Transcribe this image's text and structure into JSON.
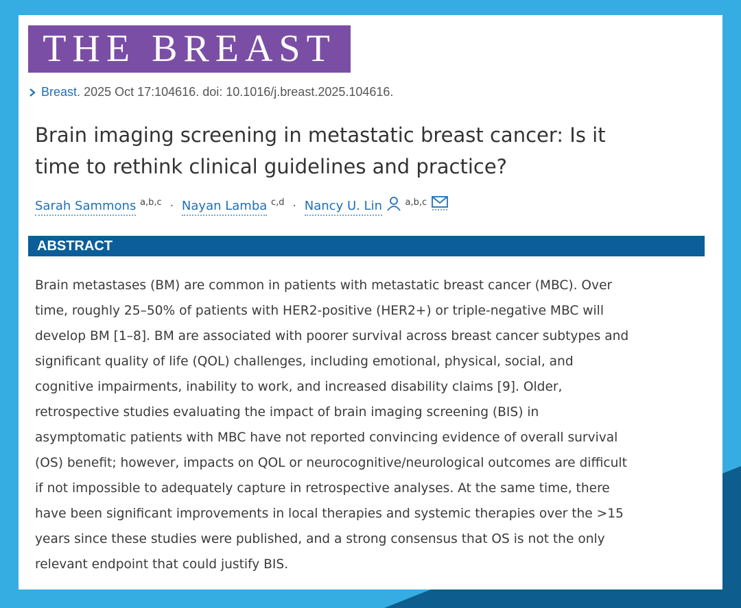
{
  "header": {
    "logo": "THE BREAST",
    "journal": "Breast.",
    "citation": "2025 Oct 17:104616. doi: 10.1016/j.breast.2025.104616."
  },
  "title_lines": [
    "Brain imaging screening in metastatic breast cancer: Is it",
    "time to rethink clinical guidelines and practice?"
  ],
  "author_separator": "·",
  "authors": [
    {
      "name": "Sarah Sammons",
      "affiliations": "a,b,c"
    },
    {
      "name": "Nayan Lamba",
      "affiliations": "c,d"
    },
    {
      "name": "Nancy U. Lin",
      "affiliations": "a,b,c"
    }
  ],
  "abstract": {
    "heading": "ABSTRACT",
    "lines": [
      "Brain metastases (BM) are common in patients with metastatic breast cancer (MBC). Over",
      "time, roughly 25–50% of patients with HER2-positive (HER2+) or triple-negative MBC will",
      "develop BM [1–8]. BM are associated with poorer survival across breast cancer subtypes and",
      "significant quality of life (QOL) challenges, including emotional, physical, social, and",
      "cognitive impairments, inability to work, and increased disability claims [9]. Older,",
      "retrospective studies evaluating the impact of brain imaging screening (BIS) in",
      "asymptomatic patients with MBC have not reported convincing evidence of overall survival",
      "(OS) benefit; however, impacts on QOL or neurocognitive/neurological outcomes are difficult",
      "if not impossible to adequately capture in retrospective analyses. At the same time, there",
      "have been significant improvements in local therapies and systemic therapies over the >15",
      "years since these studies were published, and a strong consensus that OS is not the only",
      "relevant endpoint that could justify BIS."
    ]
  }
}
